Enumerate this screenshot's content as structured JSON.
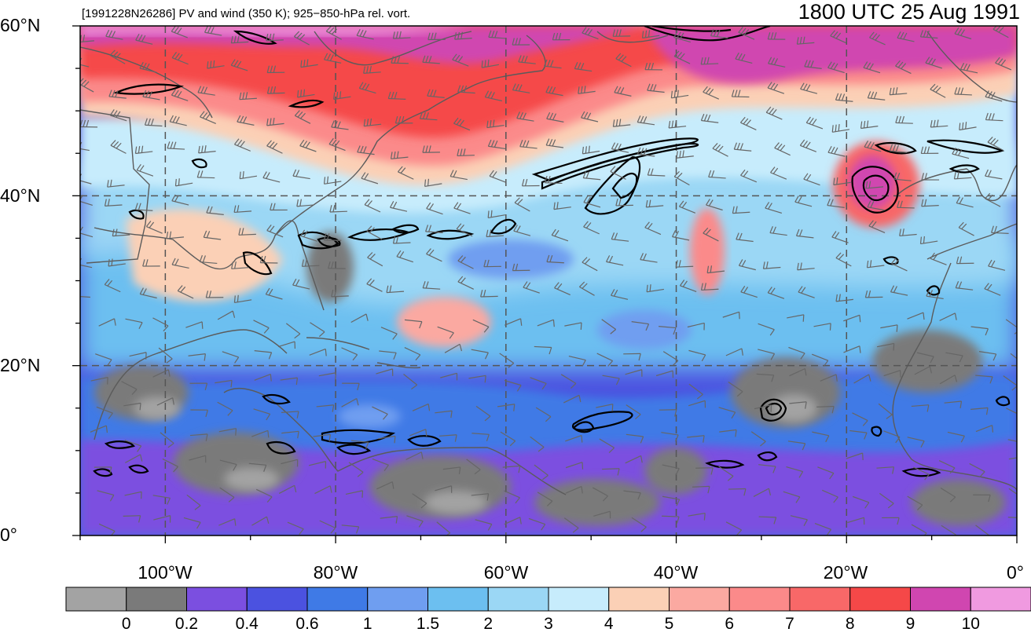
{
  "header": {
    "left_title": "[1991228N26286] PV and wind (350 K); 925−850-hPa rel. vort.",
    "right_title": "1800 UTC 25 Aug 1991"
  },
  "map": {
    "lon_range": [
      -110,
      0
    ],
    "lat_range": [
      0,
      60
    ],
    "lat_labels": [
      {
        "value": 60,
        "text": "60°N"
      },
      {
        "value": 40,
        "text": "40°N"
      },
      {
        "value": 20,
        "text": "20°N"
      },
      {
        "value": 0,
        "text": "0°"
      }
    ],
    "lon_labels": [
      {
        "value": -100,
        "text": "100°W"
      },
      {
        "value": -80,
        "text": "80°W"
      },
      {
        "value": -60,
        "text": "60°W"
      },
      {
        "value": -40,
        "text": "40°W"
      },
      {
        "value": -20,
        "text": "20°W"
      },
      {
        "value": 0,
        "text": "0°"
      }
    ],
    "colors": {
      "pv_bins": [
        "#a3a3a3",
        "#7a7a7a",
        "#7b4fe0",
        "#4b52e0",
        "#3f7ae6",
        "#6f9ef0",
        "#6cbff0",
        "#9bd7f5",
        "#c7ecfc",
        "#fbd0b6",
        "#fba9a1",
        "#fb8a8a",
        "#f86868",
        "#f54848",
        "#d046b0",
        "#f09ae0"
      ],
      "grid": "#555555",
      "coast": "#5b5b5b",
      "vort_contour": "#000000",
      "barb": "#666666"
    }
  },
  "colorbar": {
    "labels": [
      "0",
      "0.2",
      "0.4",
      "0.6",
      "1",
      "1.5",
      "2",
      "3",
      "4",
      "5",
      "6",
      "7",
      "8",
      "9",
      "10"
    ]
  }
}
